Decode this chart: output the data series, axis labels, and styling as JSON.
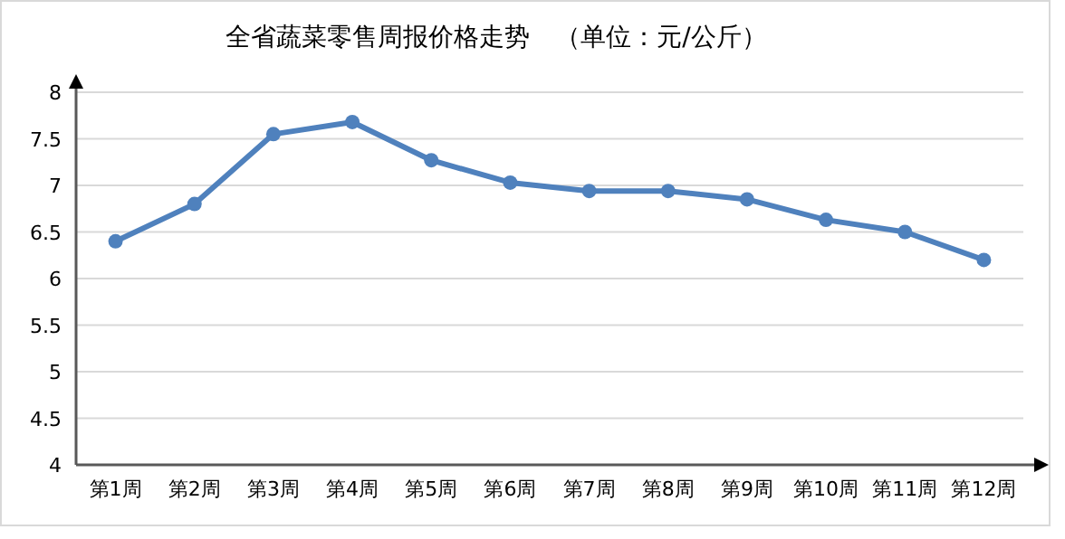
{
  "chart_data": {
    "type": "line",
    "title": "全省蔬菜零售周报价格走势　（单位：元/公斤）",
    "categories": [
      "第1周",
      "第2周",
      "第3周",
      "第4周",
      "第5周",
      "第6周",
      "第7周",
      "第8周",
      "第9周",
      "第10周",
      "第11周",
      "第12周"
    ],
    "series": [
      {
        "color": "#4f81bd",
        "values": [
          6.4,
          6.8,
          7.55,
          7.68,
          7.27,
          7.03,
          6.94,
          6.94,
          6.85,
          6.63,
          6.5,
          6.2
        ]
      }
    ],
    "ylim": [
      4,
      8
    ],
    "yticks": [
      4,
      {
        "value": 4.5,
        "label": "4.5"
      },
      5,
      {
        "value": 5.5,
        "label": "5.5"
      },
      6,
      {
        "value": 6.5,
        "label": "6.5"
      },
      7,
      {
        "value": 7.5,
        "label": "7.5"
      },
      8
    ],
    "grid": "y",
    "marker": "circle",
    "line_style": "solid"
  }
}
